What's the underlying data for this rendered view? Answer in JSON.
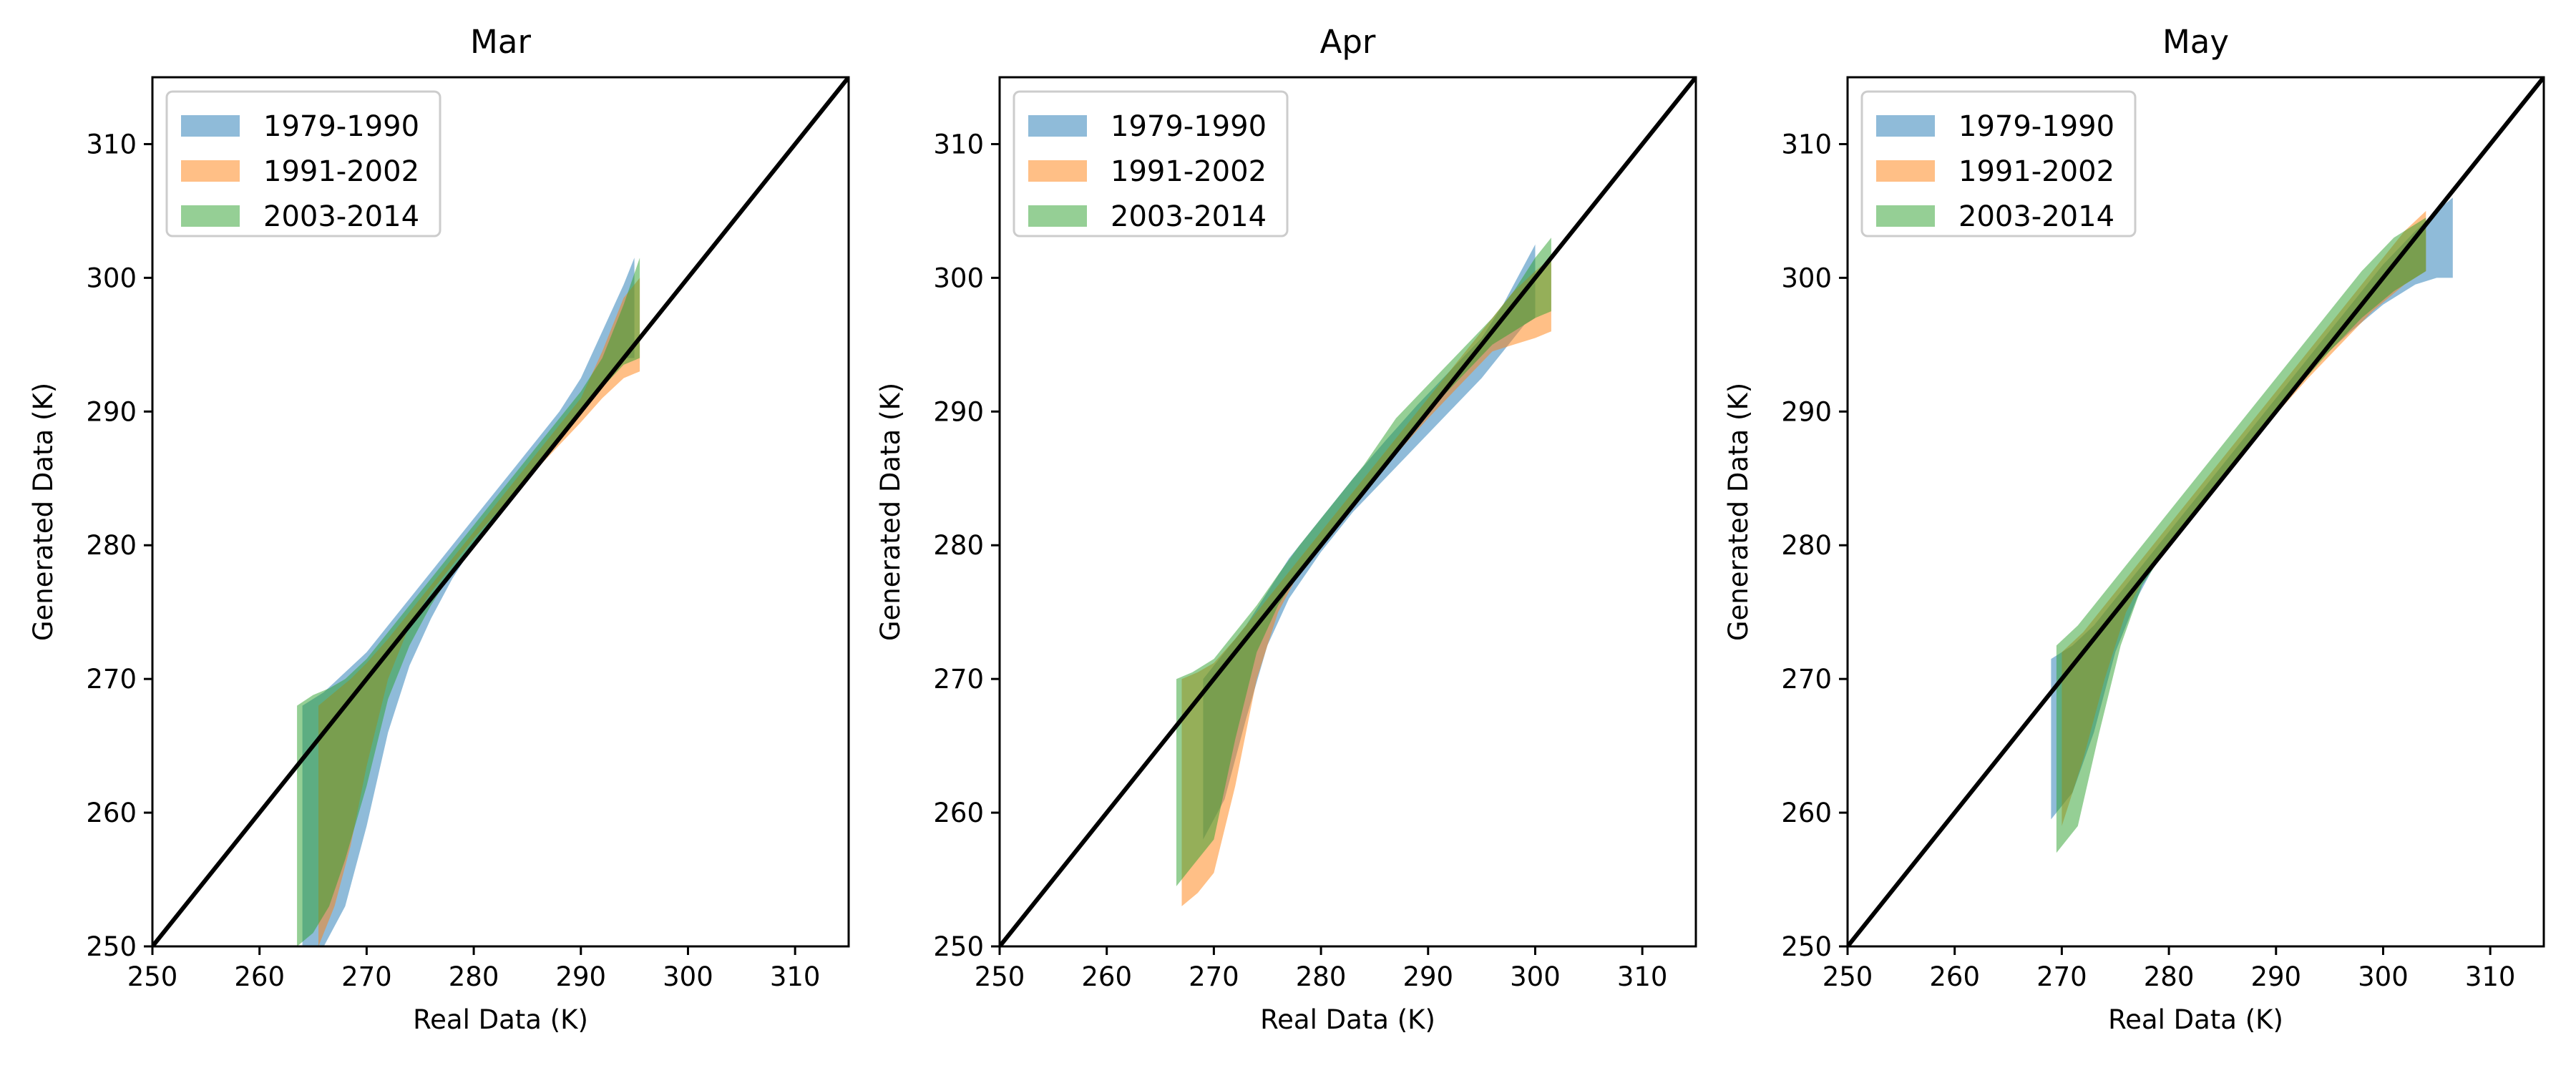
{
  "chart_data": [
    {
      "type": "area",
      "title": "Mar",
      "xlabel": "Real Data (K)",
      "ylabel": "Generated Data (K)",
      "xlim": [
        250,
        315
      ],
      "ylim": [
        250,
        315
      ],
      "xticks": [
        250,
        260,
        270,
        280,
        290,
        300,
        310
      ],
      "yticks": [
        250,
        260,
        270,
        280,
        290,
        300,
        310
      ],
      "grid": false,
      "legend_position": "top-left",
      "reference_line": {
        "x": [
          250,
          315
        ],
        "y": [
          250,
          315
        ],
        "color": "#000000"
      },
      "series": [
        {
          "name": "1979-1990",
          "color": "#1f77b4",
          "x": [
            264.0,
            266.0,
            268.0,
            270.0,
            272.0,
            274.0,
            276.0,
            278.0,
            280.0,
            282.0,
            284.0,
            286.0,
            288.0,
            290.0,
            292.0,
            294.0,
            295.0
          ],
          "lower": [
            250.0,
            250.0,
            253.0,
            259.0,
            266.0,
            271.0,
            274.5,
            277.5,
            280.0,
            282.0,
            284.0,
            286.0,
            288.0,
            290.0,
            292.0,
            294.0,
            294.0
          ],
          "upper": [
            268.0,
            269.0,
            270.5,
            272.0,
            274.0,
            276.0,
            278.0,
            280.0,
            282.0,
            284.0,
            286.0,
            288.0,
            290.0,
            292.5,
            296.0,
            299.5,
            301.5
          ]
        },
        {
          "name": "1991-2002",
          "color": "#ff7f0e",
          "x": [
            265.5,
            267.0,
            268.5,
            270.0,
            272.0,
            274.0,
            276.0,
            278.0,
            280.0,
            282.0,
            284.0,
            286.0,
            288.0,
            290.0,
            292.0,
            294.0,
            295.5
          ],
          "lower": [
            250.0,
            253.0,
            257.5,
            263.5,
            270.0,
            274.0,
            276.5,
            278.5,
            280.5,
            282.3,
            284.0,
            285.8,
            287.5,
            289.2,
            291.0,
            292.5,
            293.0
          ],
          "upper": [
            268.0,
            269.0,
            270.0,
            271.2,
            273.0,
            275.0,
            277.0,
            279.0,
            281.0,
            283.0,
            285.0,
            287.0,
            289.0,
            291.0,
            294.5,
            298.5,
            300.0
          ]
        },
        {
          "name": "2003-2014",
          "color": "#2ca02c",
          "x": [
            263.5,
            265.0,
            266.5,
            268.0,
            270.0,
            272.0,
            274.0,
            276.0,
            278.0,
            280.0,
            282.0,
            284.0,
            286.0,
            288.0,
            290.0,
            292.0,
            294.0,
            295.5
          ],
          "lower": [
            250.0,
            251.0,
            253.0,
            256.5,
            262.0,
            268.5,
            272.5,
            275.5,
            278.0,
            280.0,
            282.0,
            284.0,
            285.8,
            287.8,
            289.8,
            291.8,
            293.5,
            294.0
          ],
          "upper": [
            268.0,
            268.8,
            269.3,
            270.0,
            271.5,
            273.5,
            275.5,
            277.5,
            279.5,
            281.5,
            283.5,
            285.5,
            287.5,
            289.5,
            291.5,
            294.0,
            298.0,
            301.5
          ]
        }
      ]
    },
    {
      "type": "area",
      "title": "Apr",
      "xlabel": "Real Data (K)",
      "ylabel": "Generated Data (K)",
      "xlim": [
        250,
        315
      ],
      "ylim": [
        250,
        315
      ],
      "xticks": [
        250,
        260,
        270,
        280,
        290,
        300,
        310
      ],
      "yticks": [
        250,
        260,
        270,
        280,
        290,
        300,
        310
      ],
      "grid": false,
      "legend_position": "top-left",
      "reference_line": {
        "x": [
          250,
          315
        ],
        "y": [
          250,
          315
        ],
        "color": "#000000"
      },
      "series": [
        {
          "name": "1979-1990",
          "color": "#1f77b4",
          "x": [
            269.0,
            271.0,
            273.0,
            275.0,
            277.0,
            280.0,
            283.0,
            286.0,
            289.0,
            292.0,
            295.0,
            297.0,
            299.0,
            300.0
          ],
          "lower": [
            258.0,
            261.0,
            267.0,
            272.5,
            276.0,
            279.5,
            282.5,
            285.0,
            287.5,
            290.0,
            292.5,
            294.5,
            296.5,
            297.0
          ],
          "upper": [
            270.0,
            272.0,
            274.0,
            276.5,
            279.0,
            282.0,
            285.0,
            287.8,
            290.5,
            293.0,
            295.5,
            298.0,
            301.0,
            302.5
          ]
        },
        {
          "name": "1991-2002",
          "color": "#ff7f0e",
          "x": [
            267.0,
            268.5,
            270.0,
            272.0,
            274.0,
            276.0,
            278.0,
            281.0,
            284.0,
            287.0,
            290.0,
            293.0,
            296.0,
            298.0,
            300.0,
            301.5
          ],
          "lower": [
            253.0,
            254.0,
            255.5,
            262.0,
            270.0,
            275.0,
            278.0,
            281.0,
            284.0,
            286.8,
            289.5,
            292.0,
            294.5,
            295.0,
            295.5,
            296.0
          ],
          "upper": [
            270.0,
            270.5,
            271.2,
            273.0,
            275.0,
            277.0,
            279.0,
            282.0,
            285.0,
            288.0,
            291.0,
            294.0,
            297.0,
            299.0,
            300.5,
            301.5
          ]
        },
        {
          "name": "2003-2014",
          "color": "#2ca02c",
          "x": [
            266.5,
            268.0,
            270.0,
            272.0,
            274.0,
            276.0,
            278.0,
            281.0,
            284.0,
            287.0,
            290.0,
            293.0,
            296.0,
            298.0,
            300.0,
            301.5
          ],
          "lower": [
            254.5,
            256.0,
            258.0,
            265.5,
            272.0,
            275.5,
            278.0,
            281.0,
            284.0,
            287.0,
            290.0,
            292.5,
            295.0,
            296.0,
            297.0,
            297.5
          ],
          "upper": [
            270.0,
            270.5,
            271.5,
            273.5,
            275.5,
            277.8,
            280.0,
            283.0,
            286.0,
            289.5,
            292.0,
            294.5,
            297.0,
            299.0,
            301.5,
            303.0
          ]
        }
      ]
    },
    {
      "type": "area",
      "title": "May",
      "xlabel": "Real Data (K)",
      "ylabel": "Generated Data (K)",
      "xlim": [
        250,
        315
      ],
      "ylim": [
        250,
        315
      ],
      "xticks": [
        250,
        260,
        270,
        280,
        290,
        300,
        310
      ],
      "yticks": [
        250,
        260,
        270,
        280,
        290,
        300,
        310
      ],
      "grid": false,
      "legend_position": "top-left",
      "reference_line": {
        "x": [
          250,
          315
        ],
        "y": [
          250,
          315
        ],
        "color": "#000000"
      },
      "series": [
        {
          "name": "1979-1990",
          "color": "#1f77b4",
          "x": [
            269.0,
            271.0,
            273.0,
            275.0,
            277.0,
            279.0,
            282.0,
            285.0,
            288.0,
            291.0,
            294.0,
            297.0,
            300.0,
            303.0,
            305.0,
            306.5
          ],
          "lower": [
            259.5,
            261.5,
            266.0,
            272.0,
            276.0,
            279.0,
            282.0,
            285.0,
            288.0,
            291.0,
            293.8,
            296.0,
            298.0,
            299.5,
            300.0,
            300.0
          ],
          "upper": [
            271.5,
            272.5,
            274.0,
            276.0,
            278.0,
            280.0,
            283.0,
            286.0,
            289.0,
            292.0,
            295.0,
            298.0,
            301.0,
            303.5,
            305.0,
            306.0
          ]
        },
        {
          "name": "1991-2002",
          "color": "#ff7f0e",
          "x": [
            270.0,
            272.0,
            274.0,
            276.0,
            278.0,
            281.0,
            284.0,
            287.0,
            290.0,
            293.0,
            296.0,
            299.0,
            302.0,
            304.0
          ],
          "lower": [
            259.0,
            264.0,
            270.0,
            275.0,
            278.0,
            281.0,
            284.0,
            287.0,
            289.8,
            292.5,
            295.0,
            297.5,
            299.5,
            300.5
          ],
          "upper": [
            272.0,
            273.5,
            275.5,
            277.5,
            279.5,
            282.5,
            285.5,
            288.5,
            291.5,
            294.5,
            297.5,
            300.5,
            303.5,
            305.0
          ]
        },
        {
          "name": "2003-2014",
          "color": "#2ca02c",
          "x": [
            269.5,
            271.5,
            273.5,
            275.5,
            277.5,
            280.0,
            283.0,
            286.0,
            289.0,
            292.0,
            295.0,
            298.0,
            301.0,
            304.0
          ],
          "lower": [
            257.0,
            259.0,
            266.0,
            272.5,
            277.0,
            280.0,
            283.0,
            286.0,
            289.0,
            291.8,
            294.5,
            297.0,
            299.0,
            300.5
          ],
          "upper": [
            272.5,
            274.0,
            276.0,
            278.0,
            280.0,
            282.5,
            285.5,
            288.5,
            291.5,
            294.5,
            297.5,
            300.5,
            303.0,
            304.5
          ]
        }
      ]
    }
  ]
}
